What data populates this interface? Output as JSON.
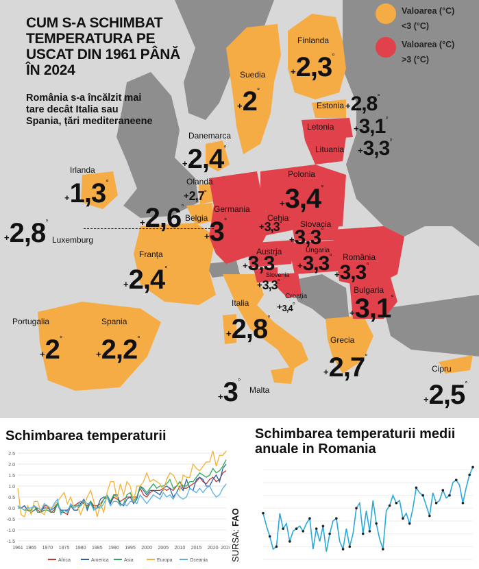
{
  "title": "CUM S-A SCHIMBAT TEMPERATURA PE USCAT DIN 1961 PÂNĂ ÎN 2024",
  "subtitle": "România s-a încălzit mai tare decât Italia sau Spania, țări mediteraneene",
  "legend": [
    {
      "label": "Valoarea (°C)",
      "sub": "<3 (°C)",
      "color": "#f5ac45"
    },
    {
      "label": "Valoarea (°C)",
      "sub": ">3 (°C)",
      "color": "#e0414b"
    }
  ],
  "colors": {
    "low": "#f5ac45",
    "high": "#e0414b",
    "land": "#8e8e8e",
    "sea": "#d8d8d8"
  },
  "countries": [
    {
      "name": "Finlanda",
      "value": "2,3"
    },
    {
      "name": "Suedia",
      "value": "2"
    },
    {
      "name": "Estonia",
      "value": "2,8"
    },
    {
      "name": "Letonia",
      "value": "3,1"
    },
    {
      "name": "Lituania",
      "value": "3,3"
    },
    {
      "name": "Danemarca",
      "value": "2,4"
    },
    {
      "name": "Irlanda",
      "value": "1,3"
    },
    {
      "name": "Olanda",
      "value": "2,7"
    },
    {
      "name": "Polonia",
      "value": "3,4"
    },
    {
      "name": "Germania",
      "value": "3"
    },
    {
      "name": "Belgia",
      "value": "2,6"
    },
    {
      "name": "Luxemburg",
      "value": "2,8"
    },
    {
      "name": "Cehia",
      "value": "3,3"
    },
    {
      "name": "Slovacia",
      "value": "3,3"
    },
    {
      "name": "Franța",
      "value": "2,4"
    },
    {
      "name": "Austria",
      "value": "3,3"
    },
    {
      "name": "Ungaria",
      "value": "3,3"
    },
    {
      "name": "România",
      "value": "3,3"
    },
    {
      "name": "Slovenia",
      "value": "3,3"
    },
    {
      "name": "Croația",
      "value": "3,4"
    },
    {
      "name": "Bulgaria",
      "value": "3,1"
    },
    {
      "name": "Italia",
      "value": "2,8"
    },
    {
      "name": "Portugalia",
      "value": "2"
    },
    {
      "name": "Spania",
      "value": "2,2"
    },
    {
      "name": "Grecia",
      "value": "2,7"
    },
    {
      "name": "Malta",
      "value": "3"
    },
    {
      "name": "Cipru",
      "value": "2,5"
    }
  ],
  "plus": "+",
  "degree": "°",
  "source": {
    "label": "SURSA:",
    "name": "FAO"
  },
  "chart_data": [
    {
      "type": "line",
      "title": "Schimbarea temperaturii",
      "x": [
        1961,
        1962,
        1963,
        1964,
        1965,
        1966,
        1967,
        1968,
        1969,
        1970,
        1971,
        1972,
        1973,
        1974,
        1975,
        1976,
        1977,
        1978,
        1979,
        1980,
        1981,
        1982,
        1983,
        1984,
        1985,
        1986,
        1987,
        1988,
        1989,
        1990,
        1991,
        1992,
        1993,
        1994,
        1995,
        1996,
        1997,
        1998,
        1999,
        2000,
        2001,
        2002,
        2003,
        2004,
        2005,
        2006,
        2007,
        2008,
        2009,
        2010,
        2011,
        2012,
        2013,
        2014,
        2015,
        2016,
        2017,
        2018,
        2019,
        2020,
        2021,
        2022,
        2023,
        2024
      ],
      "xticks": [
        "1961",
        "1965",
        "1970",
        "1975",
        "1980",
        "1985",
        "1990",
        "1995",
        "2000",
        "2005",
        "2010",
        "2015",
        "2020",
        "2024"
      ],
      "yticks": [
        "2.5",
        "2.0",
        "1.5",
        "1.0",
        "0.5",
        "0.0",
        "-0.5",
        "-1.0",
        "-1.5"
      ],
      "ylim": [
        -1.5,
        2.5
      ],
      "series": [
        {
          "name": "Africa",
          "color": "#c0392b",
          "values": [
            0.1,
            0.0,
            0.1,
            -0.1,
            -0.1,
            0.1,
            -0.1,
            -0.2,
            0.1,
            0.1,
            -0.2,
            -0.1,
            0.2,
            -0.2,
            -0.2,
            -0.3,
            0.1,
            0.1,
            0.2,
            0.3,
            0.2,
            0.1,
            0.3,
            0.1,
            0.1,
            0.2,
            0.4,
            0.5,
            0.2,
            0.5,
            0.4,
            0.3,
            0.4,
            0.5,
            0.5,
            0.5,
            0.5,
            0.9,
            0.6,
            0.5,
            0.7,
            0.8,
            0.8,
            0.8,
            0.9,
            0.8,
            0.9,
            0.8,
            1.0,
            1.2,
            0.9,
            0.9,
            1.0,
            1.1,
            1.2,
            1.4,
            1.2,
            1.1,
            1.3,
            1.4,
            1.2,
            1.3,
            1.6,
            1.7
          ]
        },
        {
          "name": "America",
          "color": "#2c5fa8",
          "values": [
            0.1,
            0.0,
            0.1,
            -0.1,
            -0.2,
            -0.1,
            0.0,
            -0.1,
            0.0,
            0.0,
            -0.1,
            0.0,
            0.2,
            -0.1,
            -0.1,
            -0.1,
            0.1,
            -0.1,
            -0.1,
            0.2,
            0.4,
            -0.1,
            0.3,
            0.0,
            0.0,
            0.4,
            0.5,
            0.5,
            0.2,
            0.6,
            0.6,
            0.2,
            0.1,
            0.4,
            0.5,
            0.2,
            0.4,
            1.0,
            0.8,
            0.6,
            0.8,
            0.8,
            0.7,
            0.6,
            0.9,
            1.0,
            0.9,
            0.5,
            0.7,
            1.0,
            0.8,
            1.3,
            0.9,
            0.8,
            1.3,
            1.4,
            1.3,
            1.0,
            1.0,
            1.3,
            1.5,
            1.2,
            1.8,
            2.0
          ]
        },
        {
          "name": "Asia",
          "color": "#2ea85a",
          "values": [
            0.0,
            0.0,
            -0.1,
            -0.1,
            -0.1,
            0.1,
            -0.2,
            -0.2,
            -0.1,
            -0.1,
            -0.2,
            -0.2,
            0.2,
            -0.2,
            -0.1,
            -0.2,
            0.1,
            0.1,
            0.1,
            0.1,
            0.3,
            0.0,
            0.3,
            -0.1,
            0.0,
            0.1,
            0.4,
            0.6,
            0.3,
            0.6,
            0.5,
            0.1,
            0.2,
            0.6,
            0.7,
            0.3,
            0.5,
            1.0,
            0.9,
            0.7,
            0.9,
            1.1,
            0.9,
            1.0,
            1.0,
            1.1,
            1.3,
            0.9,
            1.0,
            1.2,
            1.0,
            1.0,
            1.2,
            1.2,
            1.4,
            1.6,
            1.5,
            1.4,
            1.5,
            1.8,
            1.6,
            1.7,
            1.9,
            2.2
          ]
        },
        {
          "name": "Europa",
          "color": "#f2b233",
          "values": [
            0.9,
            -0.3,
            -0.4,
            0.1,
            -0.3,
            0.3,
            0.3,
            -0.2,
            -0.3,
            0.1,
            0.0,
            0.1,
            0.3,
            0.5,
            0.7,
            0.2,
            0.5,
            0.0,
            0.1,
            -0.3,
            0.1,
            0.5,
            0.8,
            0.3,
            -0.4,
            0.2,
            -0.2,
            0.7,
            1.2,
            1.2,
            0.4,
            1.1,
            0.6,
            1.2,
            1.0,
            0.3,
            1.0,
            1.0,
            1.2,
            1.6,
            1.2,
            1.3,
            1.2,
            1.1,
            0.8,
            1.3,
            1.6,
            1.5,
            1.2,
            0.8,
            1.5,
            1.4,
            1.4,
            2.0,
            1.8,
            1.7,
            1.9,
            2.1,
            2.1,
            2.6,
            1.9,
            2.4,
            2.4,
            2.6
          ]
        },
        {
          "name": "Oceania",
          "color": "#5bb0e0",
          "values": [
            0.1,
            0.0,
            -0.1,
            0.0,
            0.0,
            0.1,
            0.0,
            -0.1,
            0.2,
            0.1,
            -0.1,
            0.2,
            0.4,
            -0.3,
            -0.1,
            -0.2,
            0.2,
            0.0,
            0.1,
            0.3,
            0.3,
            0.2,
            0.2,
            -0.1,
            0.0,
            0.0,
            0.2,
            0.5,
            0.1,
            0.3,
            0.3,
            0.1,
            0.2,
            0.1,
            0.3,
            0.3,
            0.2,
            0.6,
            0.4,
            0.2,
            0.4,
            0.6,
            0.5,
            0.4,
            0.7,
            0.5,
            0.6,
            0.4,
            0.7,
            0.5,
            0.4,
            0.5,
            0.9,
            0.8,
            0.7,
            0.9,
            0.7,
            0.9,
            1.0,
            0.7,
            0.5,
            0.6,
            0.9,
            1.1
          ]
        }
      ],
      "legend_placement": "bottom",
      "grid": true
    },
    {
      "type": "line",
      "title": "Schimbarea temperaturii medii anuale in Romania",
      "x": [
        1961,
        1962,
        1963,
        1964,
        1965,
        1966,
        1967,
        1968,
        1969,
        1970,
        1971,
        1972,
        1973,
        1974,
        1975,
        1976,
        1977,
        1978,
        1979,
        1980,
        1981,
        1982,
        1983,
        1984,
        1985,
        1986,
        1987,
        1988,
        1989,
        1990,
        1991,
        1992,
        1993,
        1994,
        1995,
        1996,
        1997,
        1998,
        1999,
        2000,
        2001,
        2002,
        2003,
        2004,
        2005,
        2006,
        2007,
        2008,
        2009,
        2010,
        2011,
        2012,
        2013,
        2014,
        2015,
        2016,
        2017,
        2018,
        2019,
        2020,
        2021,
        2022,
        2023,
        2024
      ],
      "series": [
        {
          "name": "",
          "color": "#2aa8d8",
          "values": [
            0.8,
            0.3,
            -0.1,
            -0.6,
            -0.5,
            0.8,
            0.2,
            0.4,
            -0.3,
            0.1,
            0.2,
            0.3,
            0.1,
            0.4,
            0.6,
            -0.6,
            0.2,
            -0.3,
            0.3,
            -0.7,
            0.0,
            0.5,
            0.6,
            -0.3,
            -0.6,
            0.2,
            -0.5,
            0.0,
            1.0,
            1.2,
            0.0,
            0.9,
            0.1,
            1.3,
            0.4,
            -0.2,
            -0.6,
            0.9,
            1.1,
            1.5,
            1.2,
            1.3,
            0.6,
            0.8,
            0.4,
            1.0,
            1.8,
            1.6,
            1.5,
            1.1,
            0.7,
            1.6,
            1.2,
            1.3,
            1.7,
            1.4,
            1.5,
            2.0,
            2.1,
            1.9,
            1.2,
            1.8,
            2.3,
            2.6
          ]
        }
      ],
      "grid": true
    }
  ]
}
